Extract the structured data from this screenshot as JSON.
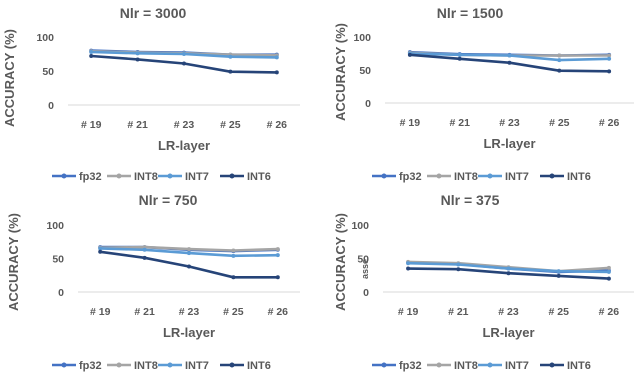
{
  "chart_data": [
    {
      "type": "line",
      "title": "Nlr = 3000",
      "xlabel": "LR-layer",
      "ylabel": "ACCURACY (%)",
      "categories": [
        "# 19",
        "# 21",
        "# 23",
        "# 25",
        "# 26"
      ],
      "ylim": [
        0,
        100
      ],
      "yticks": [
        0,
        50,
        100
      ],
      "series": [
        {
          "name": "fp32",
          "color": "#4472c4",
          "values": [
            80,
            78,
            77,
            74,
            74
          ]
        },
        {
          "name": "INT8",
          "color": "#a5a5a5",
          "values": [
            79,
            77,
            76,
            74,
            73
          ]
        },
        {
          "name": "INT7",
          "color": "#5b9bd5",
          "values": [
            78,
            76,
            75,
            71,
            70
          ]
        },
        {
          "name": "INT6",
          "color": "#264478",
          "values": [
            72,
            67,
            61,
            49,
            48
          ]
        }
      ]
    },
    {
      "type": "line",
      "title": "Nlr = 1500",
      "xlabel": "LR-layer",
      "ylabel": "ACCURACY (%)",
      "categories": [
        "# 19",
        "# 21",
        "# 23",
        "# 25",
        "# 26"
      ],
      "ylim": [
        0,
        100
      ],
      "yticks": [
        0,
        50,
        100
      ],
      "series": [
        {
          "name": "fp32",
          "color": "#4472c4",
          "values": [
            77,
            74,
            73,
            72,
            73
          ]
        },
        {
          "name": "INT8",
          "color": "#a5a5a5",
          "values": [
            76,
            73,
            72,
            72,
            72
          ]
        },
        {
          "name": "INT7",
          "color": "#5b9bd5",
          "values": [
            75,
            73,
            72,
            65,
            67
          ]
        },
        {
          "name": "INT6",
          "color": "#264478",
          "values": [
            73,
            67,
            61,
            49,
            48
          ]
        }
      ]
    },
    {
      "type": "line",
      "title": "Nlr =  750",
      "xlabel": "LR-layer",
      "ylabel": "ACCURACY (%)",
      "categories": [
        "# 19",
        "# 21",
        "# 23",
        "# 25",
        "# 26"
      ],
      "ylim": [
        0,
        100
      ],
      "yticks": [
        0,
        50,
        100
      ],
      "series": [
        {
          "name": "fp32",
          "color": "#4472c4",
          "values": [
            67,
            67,
            63,
            61,
            63
          ]
        },
        {
          "name": "INT8",
          "color": "#a5a5a5",
          "values": [
            66,
            67,
            64,
            62,
            64
          ]
        },
        {
          "name": "INT7",
          "color": "#5b9bd5",
          "values": [
            65,
            63,
            58,
            54,
            55
          ]
        },
        {
          "name": "INT6",
          "color": "#264478",
          "values": [
            60,
            51,
            38,
            22,
            22
          ]
        }
      ]
    },
    {
      "type": "line",
      "title": "Nlr = 375",
      "xlabel": "LR-layer",
      "ylabel": "ACCURACY (%)",
      "note": "asse",
      "categories": [
        "# 19",
        "# 21",
        "# 23",
        "# 25",
        "# 26"
      ],
      "ylim": [
        0,
        100
      ],
      "yticks": [
        0,
        50,
        100
      ],
      "series": [
        {
          "name": "fp32",
          "color": "#4472c4",
          "values": [
            44,
            42,
            35,
            30,
            32
          ]
        },
        {
          "name": "INT8",
          "color": "#a5a5a5",
          "values": [
            45,
            43,
            37,
            31,
            36
          ]
        },
        {
          "name": "INT7",
          "color": "#5b9bd5",
          "values": [
            43,
            41,
            35,
            31,
            30
          ]
        },
        {
          "name": "INT6",
          "color": "#264478",
          "values": [
            35,
            34,
            28,
            24,
            20
          ]
        }
      ]
    }
  ]
}
